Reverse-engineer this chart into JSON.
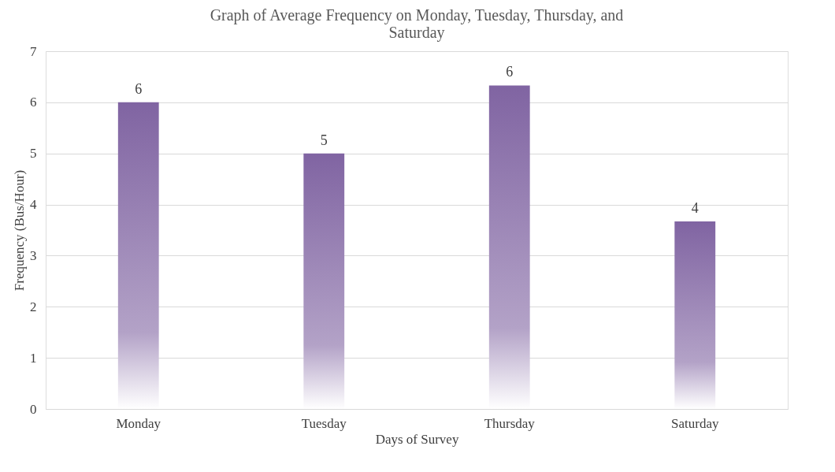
{
  "chart_data": {
    "type": "bar",
    "title": [
      "Graph of Average Frequency on Monday, Tuesday, Thursday, and",
      "Saturday"
    ],
    "xlabel": "Days of Survey",
    "ylabel": "Frequency (Bus/Hour)",
    "categories": [
      "Monday",
      "Tuesday",
      "Thursday",
      "Saturday"
    ],
    "values": [
      6,
      5,
      6.33,
      3.67
    ],
    "value_labels": [
      "6",
      "5",
      "6",
      "4"
    ],
    "color": "#8064a2",
    "ylim": [
      0,
      7
    ],
    "yticks": [
      0,
      1,
      2,
      3,
      4,
      5,
      6,
      7
    ],
    "grid": "y"
  }
}
